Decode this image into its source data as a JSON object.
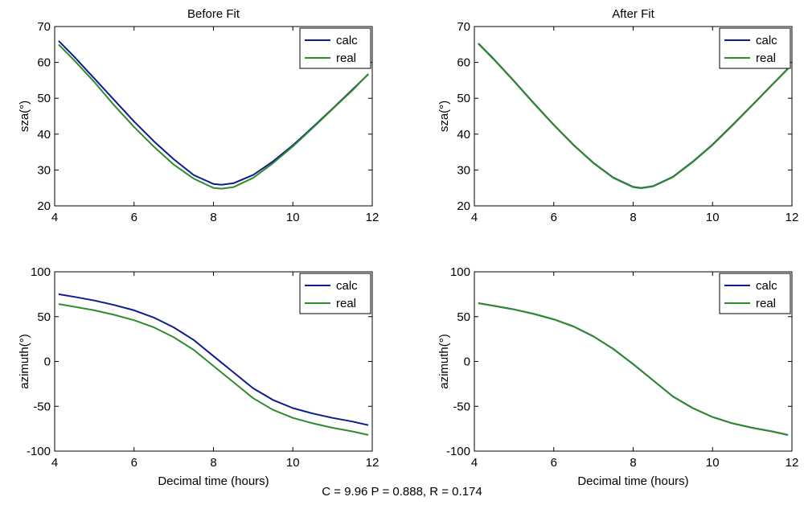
{
  "caption": "C = 9.96  P  = 0.888,  R = 0.174",
  "colors": {
    "calc": "#0d1b8c",
    "real": "#2e8b2e",
    "axis": "#000000"
  },
  "chart_data": [
    {
      "type": "line",
      "title": "Before Fit",
      "xlabel": "",
      "ylabel": "sza(°)",
      "xlim": [
        4,
        12
      ],
      "ylim": [
        20,
        70
      ],
      "xticks": [
        4,
        6,
        8,
        10,
        12
      ],
      "yticks": [
        20,
        30,
        40,
        50,
        60,
        70
      ],
      "legend": "top-right",
      "series": [
        {
          "name": "calc",
          "x": [
            4.1,
            4.5,
            5,
            5.5,
            6,
            6.5,
            7,
            7.5,
            8,
            8.2,
            8.5,
            9,
            9.5,
            10,
            10.5,
            11,
            11.5,
            11.9
          ],
          "y": [
            66,
            61.5,
            55.5,
            49.5,
            43.5,
            38,
            33,
            28.6,
            26.1,
            25.9,
            26.3,
            28.6,
            32.4,
            36.9,
            41.9,
            47.1,
            52.4,
            56.7
          ]
        },
        {
          "name": "real",
          "x": [
            4.1,
            4.5,
            5,
            5.5,
            6,
            6.5,
            7,
            7.5,
            8,
            8.2,
            8.5,
            9,
            9.5,
            10,
            10.5,
            11,
            11.5,
            11.9
          ],
          "y": [
            65,
            60.5,
            54.5,
            48,
            42,
            36.5,
            31.5,
            27.6,
            25,
            24.8,
            25.2,
            27.8,
            31.9,
            36.6,
            41.7,
            47,
            52.2,
            56.8
          ]
        }
      ]
    },
    {
      "type": "line",
      "title": "After Fit",
      "xlabel": "",
      "ylabel": "sza(°)",
      "xlim": [
        4,
        12
      ],
      "ylim": [
        20,
        70
      ],
      "xticks": [
        4,
        6,
        8,
        10,
        12
      ],
      "yticks": [
        20,
        30,
        40,
        50,
        60,
        70
      ],
      "legend": "top-right",
      "series": [
        {
          "name": "calc",
          "x": [
            4.1,
            4.5,
            5,
            5.5,
            6,
            6.5,
            7,
            7.5,
            8,
            8.2,
            8.5,
            9,
            9.5,
            10,
            10.5,
            11,
            11.5,
            11.9
          ],
          "y": [
            65.3,
            60.8,
            54.8,
            48.6,
            42.6,
            37,
            32,
            27.9,
            25.3,
            25,
            25.5,
            28.1,
            32.3,
            37.1,
            42.5,
            48.1,
            53.8,
            58.3
          ]
        },
        {
          "name": "real",
          "x": [
            4.1,
            4.5,
            5,
            5.5,
            6,
            6.5,
            7,
            7.5,
            8,
            8.2,
            8.5,
            9,
            9.5,
            10,
            10.5,
            11,
            11.5,
            11.9
          ],
          "y": [
            65.2,
            60.7,
            54.7,
            48.5,
            42.5,
            36.9,
            31.9,
            27.8,
            25.2,
            24.9,
            25.4,
            28,
            32.2,
            37,
            42.4,
            48,
            53.7,
            58.2
          ]
        }
      ]
    },
    {
      "type": "line",
      "title": "",
      "xlabel": "Decimal time (hours)",
      "ylabel": "azimuth(°)",
      "xlim": [
        4,
        12
      ],
      "ylim": [
        -100,
        100
      ],
      "xticks": [
        4,
        6,
        8,
        10,
        12
      ],
      "yticks": [
        -100,
        -50,
        0,
        50,
        100
      ],
      "legend": "top-right",
      "series": [
        {
          "name": "calc",
          "x": [
            4.1,
            4.5,
            5,
            5.5,
            6,
            6.5,
            7,
            7.5,
            8,
            8.5,
            9,
            9.5,
            10,
            10.5,
            11,
            11.5,
            11.9
          ],
          "y": [
            75,
            72,
            68,
            63,
            57,
            49,
            38,
            24,
            6,
            -12,
            -30,
            -43,
            -52,
            -58,
            -63,
            -67,
            -71
          ]
        },
        {
          "name": "real",
          "x": [
            4.1,
            4.5,
            5,
            5.5,
            6,
            6.5,
            7,
            7.5,
            8,
            8.5,
            9,
            9.5,
            10,
            10.5,
            11,
            11.5,
            11.9
          ],
          "y": [
            64,
            61,
            57,
            52,
            46,
            38,
            27,
            13,
            -5,
            -23,
            -41,
            -54,
            -63,
            -69,
            -74,
            -78,
            -82
          ]
        }
      ]
    },
    {
      "type": "line",
      "title": "",
      "xlabel": "Decimal time (hours)",
      "ylabel": "azimuth(°)",
      "xlim": [
        4,
        12
      ],
      "ylim": [
        -100,
        100
      ],
      "xticks": [
        4,
        6,
        8,
        10,
        12
      ],
      "yticks": [
        -100,
        -50,
        0,
        50,
        100
      ],
      "legend": "top-right",
      "series": [
        {
          "name": "calc",
          "x": [
            4.1,
            4.5,
            5,
            5.5,
            6,
            6.5,
            7,
            7.5,
            8,
            8.5,
            9,
            9.5,
            10,
            10.5,
            11,
            11.5,
            11.9
          ],
          "y": [
            65,
            62,
            58,
            53,
            47,
            39,
            28,
            14,
            -3,
            -21,
            -39,
            -52,
            -62,
            -69,
            -74,
            -78,
            -82
          ]
        },
        {
          "name": "real",
          "x": [
            4.1,
            4.5,
            5,
            5.5,
            6,
            6.5,
            7,
            7.5,
            8,
            8.5,
            9,
            9.5,
            10,
            10.5,
            11,
            11.5,
            11.9
          ],
          "y": [
            65,
            62,
            58,
            53,
            47,
            39,
            28,
            14,
            -3,
            -21,
            -39,
            -52,
            -62,
            -69,
            -74,
            -78,
            -82
          ]
        }
      ]
    }
  ]
}
